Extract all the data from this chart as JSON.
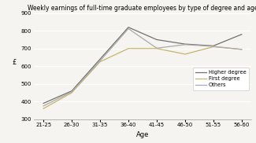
{
  "title": "Weekly earnings of full-time graduate employees by type of degree and age",
  "xlabel": "Age",
  "ylabel": "£",
  "age_groups": [
    "21-25",
    "26-30",
    "31-35",
    "36-40",
    "41-45",
    "46-50",
    "51-55",
    "56-60"
  ],
  "higher_degree": [
    390,
    460,
    640,
    820,
    750,
    725,
    715,
    780
  ],
  "first_degree": [
    360,
    450,
    625,
    700,
    700,
    668,
    710,
    695
  ],
  "others": [
    375,
    455,
    630,
    812,
    702,
    722,
    712,
    695
  ],
  "higher_color": "#707070",
  "first_color": "#c8b46a",
  "others_color": "#aaaaaa",
  "ylim": [
    300,
    900
  ],
  "yticks": [
    300,
    400,
    500,
    600,
    700,
    800,
    900
  ],
  "legend_labels": [
    "Higher degree",
    "First degree",
    "Others"
  ],
  "bg_color": "#f5f4f0",
  "grid_color": "#ffffff",
  "title_fontsize": 5.5,
  "tick_fontsize": 5.0,
  "label_fontsize": 6.0,
  "legend_fontsize": 4.8
}
